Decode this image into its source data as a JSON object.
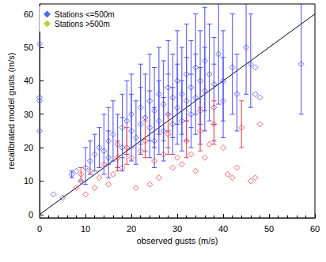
{
  "chart_data": {
    "type": "scatter",
    "xlabel": "observed gusts (m/s)",
    "ylabel": "recalibrated model gusts (m/s)",
    "xlim": [
      0,
      60
    ],
    "xticks": [
      0,
      10,
      20,
      30,
      40,
      50,
      60
    ],
    "ylim": [
      -1,
      63
    ],
    "yticks": [
      0,
      10,
      20,
      30,
      40,
      50,
      60
    ],
    "legend": "upper left",
    "grid": false,
    "series": [
      {
        "name": "Stations <=500m",
        "color": "#4a4aff",
        "marker": "diamond",
        "x": [
          0,
          0,
          0,
          0,
          3,
          5,
          7,
          8,
          9,
          10,
          11,
          12,
          13,
          14,
          15,
          15,
          16,
          17,
          18,
          18,
          19,
          20,
          20,
          21,
          22,
          22,
          23,
          24,
          24,
          25,
          25,
          26,
          26,
          27,
          27,
          28,
          28,
          29,
          29,
          30,
          30,
          31,
          31,
          32,
          32,
          33,
          33,
          34,
          34,
          35,
          35,
          36,
          36,
          37,
          38,
          38,
          39,
          40,
          40,
          42,
          43,
          45,
          46,
          47,
          47,
          48,
          57
        ],
        "values": [
          51,
          35,
          34,
          25,
          6,
          5,
          12,
          13,
          10,
          14,
          16,
          18,
          20,
          19,
          22,
          17,
          24,
          21,
          26,
          20,
          28,
          25,
          30,
          23,
          32,
          27,
          29,
          34,
          26,
          31,
          22,
          36,
          28,
          33,
          25,
          38,
          30,
          35,
          27,
          40,
          32,
          36,
          28,
          42,
          34,
          38,
          30,
          44,
          35,
          40,
          31,
          46,
          37,
          42,
          39,
          32,
          48,
          40,
          34,
          44,
          36,
          50,
          45,
          44,
          36,
          35,
          45
        ],
        "errors": [
          null,
          null,
          null,
          null,
          null,
          null,
          [
            11,
            13
          ],
          null,
          null,
          [
            9,
            20
          ],
          [
            12,
            22
          ],
          [
            13,
            24
          ],
          [
            14,
            26
          ],
          [
            12,
            30
          ],
          [
            15,
            32
          ],
          [
            11,
            25
          ],
          [
            16,
            34
          ],
          [
            14,
            30
          ],
          [
            17,
            36
          ],
          [
            13,
            29
          ],
          [
            18,
            40
          ],
          [
            16,
            36
          ],
          [
            20,
            42
          ],
          [
            15,
            34
          ],
          [
            21,
            45
          ],
          [
            18,
            38
          ],
          [
            19,
            42
          ],
          [
            22,
            48
          ],
          [
            17,
            37
          ],
          [
            20,
            44
          ],
          [
            14,
            32
          ],
          [
            24,
            50
          ],
          [
            18,
            40
          ],
          [
            22,
            46
          ],
          [
            16,
            35
          ],
          [
            25,
            52
          ],
          [
            20,
            42
          ],
          [
            23,
            48
          ],
          [
            18,
            38
          ],
          [
            27,
            55
          ],
          [
            21,
            45
          ],
          [
            24,
            50
          ],
          [
            19,
            40
          ],
          [
            28,
            57
          ],
          [
            22,
            47
          ],
          [
            26,
            52
          ],
          [
            20,
            42
          ],
          [
            30,
            60
          ],
          [
            24,
            48
          ],
          [
            27,
            55
          ],
          [
            21,
            44
          ],
          [
            31,
            62
          ],
          [
            25,
            50
          ],
          [
            28,
            57
          ],
          [
            27,
            53
          ],
          [
            22,
            45
          ],
          [
            33,
            63
          ],
          [
            28,
            55
          ],
          [
            23,
            47
          ],
          [
            30,
            60
          ],
          [
            25,
            48
          ],
          [
            36,
            63
          ],
          [
            32,
            60
          ],
          null,
          null,
          null,
          [
            30,
            63
          ]
        ]
      },
      {
        "name": "Stations >500m",
        "color": "#ff3a3a",
        "marker": "diamond",
        "x": [
          8,
          9,
          10,
          11,
          12,
          13,
          14,
          15,
          16,
          17,
          18,
          19,
          20,
          21,
          22,
          23,
          24,
          25,
          26,
          27,
          28,
          29,
          30,
          31,
          32,
          33,
          34,
          35,
          36,
          37,
          38,
          40,
          41,
          42,
          43,
          44,
          46,
          47,
          48
        ],
        "values": [
          8,
          12,
          6,
          13,
          8,
          11,
          15,
          9,
          12,
          17,
          14,
          20,
          17,
          8,
          19,
          22,
          9,
          16,
          11,
          18,
          24,
          14,
          17,
          15,
          22,
          18,
          13,
          25,
          17,
          21,
          27,
          20,
          12,
          11,
          14,
          26,
          10,
          11,
          27
        ],
        "errors": [
          null,
          [
            10,
            14
          ],
          null,
          null,
          null,
          null,
          null,
          null,
          null,
          [
            13,
            22
          ],
          null,
          [
            15,
            26
          ],
          null,
          null,
          null,
          [
            17,
            28
          ],
          null,
          null,
          null,
          null,
          [
            18,
            30
          ],
          null,
          null,
          null,
          [
            17,
            28
          ],
          null,
          null,
          [
            19,
            32
          ],
          null,
          null,
          [
            21,
            34
          ],
          null,
          null,
          null,
          null,
          [
            20,
            34
          ],
          null,
          null,
          null
        ]
      },
      {
        "type": "line",
        "color": "#000000",
        "line_style": "solid",
        "x": [
          0,
          60
        ],
        "values": [
          0,
          60
        ]
      }
    ]
  }
}
